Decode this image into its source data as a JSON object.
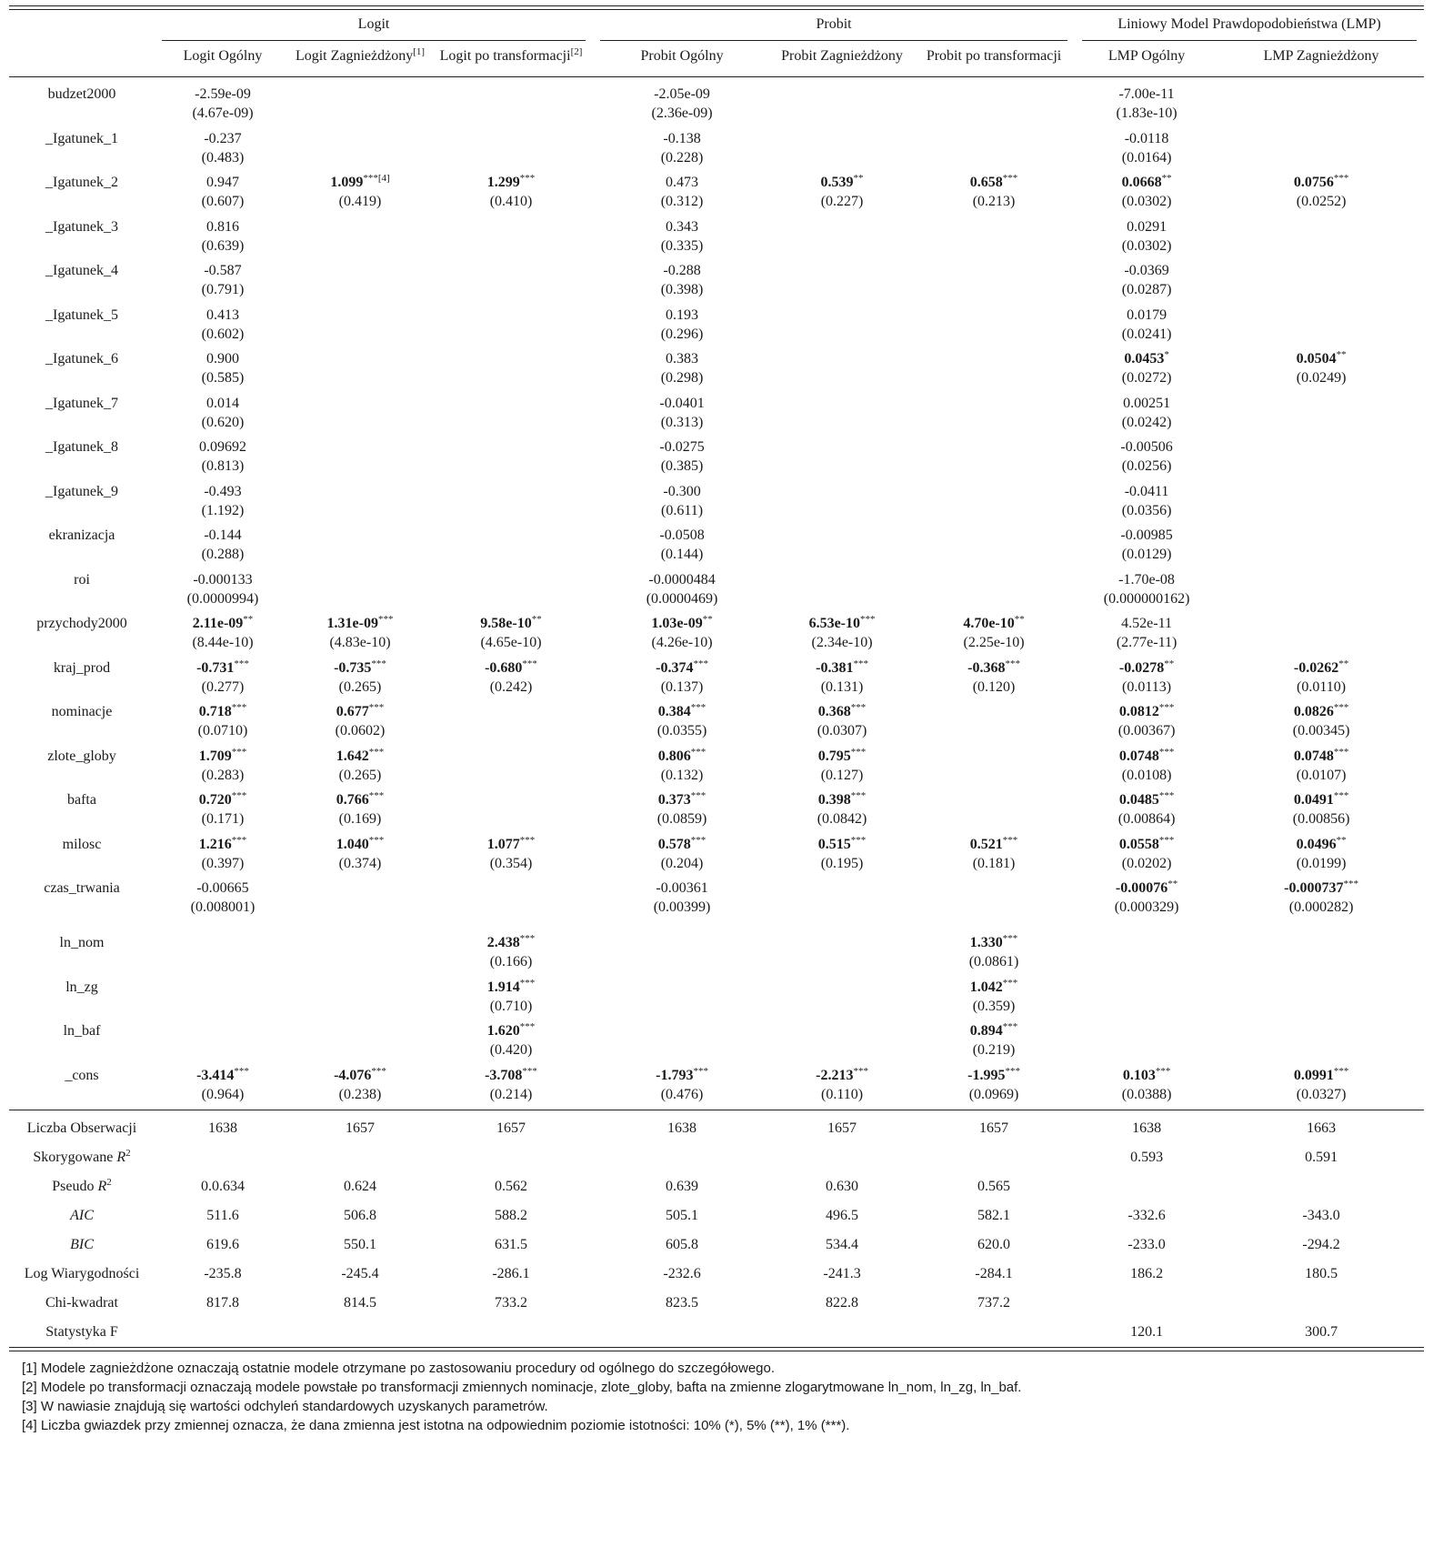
{
  "groups": [
    {
      "label": "Logit",
      "cols": 3
    },
    {
      "label": "Probit",
      "cols": 3
    },
    {
      "label": "Liniowy Model Prawdopodobieństwa (LMP)",
      "cols": 2
    }
  ],
  "columns": [
    {
      "label": "Logit Ogólny",
      "sup": ""
    },
    {
      "label": "Logit Zagnieżdżony",
      "sup": "[1]"
    },
    {
      "label": "Logit po transformacji",
      "sup": "[2]"
    },
    {
      "label": "Probit Ogólny",
      "sup": ""
    },
    {
      "label": "Probit Zagnieżdżony",
      "sup": ""
    },
    {
      "label": "Probit po transformacji",
      "sup": ""
    },
    {
      "label": "LMP Ogólny",
      "sup": ""
    },
    {
      "label": "LMP Zagnieżdżony",
      "sup": ""
    }
  ],
  "rows": [
    {
      "var": "budzet2000",
      "cells": [
        {
          "c": "-2.59e-09",
          "s": "(4.67e-09)",
          "st": ""
        },
        null,
        null,
        {
          "c": "-2.05e-09",
          "s": "(2.36e-09)",
          "st": ""
        },
        null,
        null,
        {
          "c": "-7.00e-11",
          "s": "(1.83e-10)",
          "st": ""
        },
        null
      ]
    },
    {
      "var": "_Igatunek_1",
      "cells": [
        {
          "c": "-0.237",
          "s": "(0.483)",
          "st": ""
        },
        null,
        null,
        {
          "c": "-0.138",
          "s": "(0.228)",
          "st": ""
        },
        null,
        null,
        {
          "c": "-0.0118",
          "s": "(0.0164)",
          "st": ""
        },
        null
      ]
    },
    {
      "var": "_Igatunek_2",
      "cells": [
        {
          "c": "0.947",
          "s": "(0.607)",
          "st": ""
        },
        {
          "c": "1.099",
          "s": "(0.419)",
          "st": "***",
          "b": true,
          "sup": "[4]"
        },
        {
          "c": "1.299",
          "s": "(0.410)",
          "st": "***",
          "b": true
        },
        {
          "c": "0.473",
          "s": "(0.312)",
          "st": ""
        },
        {
          "c": "0.539",
          "s": "(0.227)",
          "st": "**",
          "b": true
        },
        {
          "c": "0.658",
          "s": "(0.213)",
          "st": "***",
          "b": true
        },
        {
          "c": "0.0668",
          "s": "(0.0302)",
          "st": "**",
          "b": true
        },
        {
          "c": "0.0756",
          "s": "(0.0252)",
          "st": "***",
          "b": true
        }
      ]
    },
    {
      "var": "_Igatunek_3",
      "cells": [
        {
          "c": "0.816",
          "s": "(0.639)",
          "st": ""
        },
        null,
        null,
        {
          "c": "0.343",
          "s": "(0.335)",
          "st": ""
        },
        null,
        null,
        {
          "c": "0.0291",
          "s": "(0.0302)",
          "st": ""
        },
        null
      ]
    },
    {
      "var": "_Igatunek_4",
      "cells": [
        {
          "c": "-0.587",
          "s": "(0.791)",
          "st": ""
        },
        null,
        null,
        {
          "c": "-0.288",
          "s": "(0.398)",
          "st": ""
        },
        null,
        null,
        {
          "c": "-0.0369",
          "s": "(0.0287)",
          "st": ""
        },
        null
      ]
    },
    {
      "var": "_Igatunek_5",
      "cells": [
        {
          "c": "0.413",
          "s": "(0.602)",
          "st": ""
        },
        null,
        null,
        {
          "c": "0.193",
          "s": "(0.296)",
          "st": ""
        },
        null,
        null,
        {
          "c": "0.0179",
          "s": "(0.0241)",
          "st": ""
        },
        null
      ]
    },
    {
      "var": "_Igatunek_6",
      "cells": [
        {
          "c": "0.900",
          "s": "(0.585)",
          "st": ""
        },
        null,
        null,
        {
          "c": "0.383",
          "s": "(0.298)",
          "st": ""
        },
        null,
        null,
        {
          "c": "0.0453",
          "s": "(0.0272)",
          "st": "*",
          "b": true
        },
        {
          "c": "0.0504",
          "s": "(0.0249)",
          "st": "**",
          "b": true
        }
      ]
    },
    {
      "var": "_Igatunek_7",
      "cells": [
        {
          "c": "0.014",
          "s": "(0.620)",
          "st": ""
        },
        null,
        null,
        {
          "c": "-0.0401",
          "s": "(0.313)",
          "st": ""
        },
        null,
        null,
        {
          "c": "0.00251",
          "s": "(0.0242)",
          "st": ""
        },
        null
      ]
    },
    {
      "var": "_Igatunek_8",
      "cells": [
        {
          "c": "0.09692",
          "s": "(0.813)",
          "st": ""
        },
        null,
        null,
        {
          "c": "-0.0275",
          "s": "(0.385)",
          "st": ""
        },
        null,
        null,
        {
          "c": "-0.00506",
          "s": "(0.0256)",
          "st": ""
        },
        null
      ]
    },
    {
      "var": "_Igatunek_9",
      "cells": [
        {
          "c": "-0.493",
          "s": "(1.192)",
          "st": ""
        },
        null,
        null,
        {
          "c": "-0.300",
          "s": "(0.611)",
          "st": ""
        },
        null,
        null,
        {
          "c": "-0.0411",
          "s": "(0.0356)",
          "st": ""
        },
        null
      ]
    },
    {
      "var": "ekranizacja",
      "cells": [
        {
          "c": "-0.144",
          "s": "(0.288)",
          "st": ""
        },
        null,
        null,
        {
          "c": "-0.0508",
          "s": "(0.144)",
          "st": ""
        },
        null,
        null,
        {
          "c": "-0.00985",
          "s": "(0.0129)",
          "st": ""
        },
        null
      ]
    },
    {
      "var": "roi",
      "cells": [
        {
          "c": "-0.000133",
          "s": "(0.0000994)",
          "st": ""
        },
        null,
        null,
        {
          "c": "-0.0000484",
          "s": "(0.0000469)",
          "st": ""
        },
        null,
        null,
        {
          "c": "-1.70e-08",
          "s": "(0.000000162)",
          "st": ""
        },
        null
      ]
    },
    {
      "var": "przychody2000",
      "cells": [
        {
          "c": "2.11e-09",
          "s": "(8.44e-10)",
          "st": "**",
          "b": true
        },
        {
          "c": "1.31e-09",
          "s": "(4.83e-10)",
          "st": "***",
          "b": true
        },
        {
          "c": "9.58e-10",
          "s": "(4.65e-10)",
          "st": "**",
          "b": true
        },
        {
          "c": "1.03e-09",
          "s": "(4.26e-10)",
          "st": "**",
          "b": true
        },
        {
          "c": "6.53e-10",
          "s": "(2.34e-10)",
          "st": "***",
          "b": true
        },
        {
          "c": "4.70e-10",
          "s": "(2.25e-10)",
          "st": "**",
          "b": true
        },
        {
          "c": "4.52e-11",
          "s": "(2.77e-11)",
          "st": ""
        },
        null
      ]
    },
    {
      "var": "kraj_prod",
      "cells": [
        {
          "c": "-0.731",
          "s": "(0.277)",
          "st": "***",
          "b": true
        },
        {
          "c": "-0.735",
          "s": "(0.265)",
          "st": "***",
          "b": true
        },
        {
          "c": "-0.680",
          "s": "(0.242)",
          "st": "***",
          "b": true
        },
        {
          "c": "-0.374",
          "s": "(0.137)",
          "st": "***",
          "b": true
        },
        {
          "c": "-0.381",
          "s": "(0.131)",
          "st": "***",
          "b": true
        },
        {
          "c": "-0.368",
          "s": "(0.120)",
          "st": "***",
          "b": true
        },
        {
          "c": "-0.0278",
          "s": "(0.0113)",
          "st": "**",
          "b": true
        },
        {
          "c": "-0.0262",
          "s": "(0.0110)",
          "st": "**",
          "b": true
        }
      ]
    },
    {
      "var": "nominacje",
      "cells": [
        {
          "c": "0.718",
          "s": "(0.0710)",
          "st": "***",
          "b": true
        },
        {
          "c": "0.677",
          "s": "(0.0602)",
          "st": "***",
          "b": true
        },
        null,
        {
          "c": "0.384",
          "s": "(0.0355)",
          "st": "***",
          "b": true
        },
        {
          "c": "0.368",
          "s": "(0.0307)",
          "st": "***",
          "b": true
        },
        null,
        {
          "c": "0.0812",
          "s": "(0.00367)",
          "st": "***",
          "b": true
        },
        {
          "c": "0.0826",
          "s": "(0.00345)",
          "st": "***",
          "b": true
        }
      ]
    },
    {
      "var": "zlote_globy",
      "cells": [
        {
          "c": "1.709",
          "s": "(0.283)",
          "st": "***",
          "b": true
        },
        {
          "c": "1.642",
          "s": "(0.265)",
          "st": "***",
          "b": true
        },
        null,
        {
          "c": "0.806",
          "s": "(0.132)",
          "st": "***",
          "b": true
        },
        {
          "c": "0.795",
          "s": "(0.127)",
          "st": "***",
          "b": true
        },
        null,
        {
          "c": "0.0748",
          "s": "(0.0108)",
          "st": "***",
          "b": true
        },
        {
          "c": "0.0748",
          "s": "(0.0107)",
          "st": "***",
          "b": true
        }
      ]
    },
    {
      "var": "bafta",
      "cells": [
        {
          "c": "0.720",
          "s": "(0.171)",
          "st": "***",
          "b": true
        },
        {
          "c": "0.766",
          "s": "(0.169)",
          "st": "***",
          "b": true
        },
        null,
        {
          "c": "0.373",
          "s": "(0.0859)",
          "st": "***",
          "b": true
        },
        {
          "c": "0.398",
          "s": "(0.0842)",
          "st": "***",
          "b": true
        },
        null,
        {
          "c": "0.0485",
          "s": "(0.00864)",
          "st": "***",
          "b": true
        },
        {
          "c": "0.0491",
          "s": "(0.00856)",
          "st": "***",
          "b": true
        }
      ]
    },
    {
      "var": "milosc",
      "cells": [
        {
          "c": "1.216",
          "s": "(0.397)",
          "st": "***",
          "b": true
        },
        {
          "c": "1.040",
          "s": "(0.374)",
          "st": "***",
          "b": true
        },
        {
          "c": "1.077",
          "s": "(0.354)",
          "st": "***",
          "b": true
        },
        {
          "c": "0.578",
          "s": "(0.204)",
          "st": "***",
          "b": true
        },
        {
          "c": "0.515",
          "s": "(0.195)",
          "st": "***",
          "b": true
        },
        {
          "c": "0.521",
          "s": "(0.181)",
          "st": "***",
          "b": true
        },
        {
          "c": "0.0558",
          "s": "(0.0202)",
          "st": "***",
          "b": true
        },
        {
          "c": "0.0496",
          "s": "(0.0199)",
          "st": "**",
          "b": true
        }
      ]
    },
    {
      "var": "czas_trwania",
      "cells": [
        {
          "c": "-0.00665",
          "s": "(0.008001)",
          "st": ""
        },
        null,
        null,
        {
          "c": "-0.00361",
          "s": "(0.00399)",
          "st": ""
        },
        null,
        null,
        {
          "c": "-0.00076",
          "s": "(0.000329)",
          "st": "**",
          "b": true
        },
        {
          "c": "-0.000737",
          "s": "(0.000282)",
          "st": "***",
          "b": true
        }
      ]
    },
    {
      "var": "ln_nom",
      "cells": [
        null,
        null,
        {
          "c": "2.438",
          "s": "(0.166)",
          "st": "***",
          "b": true
        },
        null,
        null,
        {
          "c": "1.330",
          "s": "(0.0861)",
          "st": "***",
          "b": true
        },
        null,
        null
      ]
    },
    {
      "var": "ln_zg",
      "cells": [
        null,
        null,
        {
          "c": "1.914",
          "s": "(0.710)",
          "st": "***",
          "b": true
        },
        null,
        null,
        {
          "c": "1.042",
          "s": "(0.359)",
          "st": "***",
          "b": true
        },
        null,
        null
      ]
    },
    {
      "var": "ln_baf",
      "cells": [
        null,
        null,
        {
          "c": "1.620",
          "s": "(0.420)",
          "st": "***",
          "b": true
        },
        null,
        null,
        {
          "c": "0.894",
          "s": "(0.219)",
          "st": "***",
          "b": true
        },
        null,
        null
      ]
    },
    {
      "var": "_cons",
      "cells": [
        {
          "c": "-3.414",
          "s": "(0.964)",
          "st": "***",
          "b": true
        },
        {
          "c": "-4.076",
          "s": "(0.238)",
          "st": "***",
          "b": true
        },
        {
          "c": "-3.708",
          "s": "(0.214)",
          "st": "***",
          "b": true
        },
        {
          "c": "-1.793",
          "s": "(0.476)",
          "st": "***",
          "b": true
        },
        {
          "c": "-2.213",
          "s": "(0.110)",
          "st": "***",
          "b": true
        },
        {
          "c": "-1.995",
          "s": "(0.0969)",
          "st": "***",
          "b": true
        },
        {
          "c": "0.103",
          "s": "(0.0388)",
          "st": "***",
          "b": true
        },
        {
          "c": "0.0991",
          "s": "(0.0327)",
          "st": "***",
          "b": true
        }
      ]
    }
  ],
  "stats": [
    {
      "label": "Liczba Obserwacji",
      "values": [
        "1638",
        "1657",
        "1657",
        "1638",
        "1657",
        "1657",
        "1638",
        "1663"
      ]
    },
    {
      "label": "Skorygowane ",
      "math": "R",
      "sup": "2",
      "values": [
        "",
        "",
        "",
        "",
        "",
        "",
        "0.593",
        "0.591"
      ]
    },
    {
      "label": "Pseudo ",
      "math": "R",
      "sup": "2",
      "values": [
        "0.0.634",
        "0.624",
        "0.562",
        "0.639",
        "0.630",
        "0.565",
        "",
        ""
      ]
    },
    {
      "label": "AIC",
      "italic": true,
      "values": [
        "511.6",
        "506.8",
        "588.2",
        "505.1",
        "496.5",
        "582.1",
        "-332.6",
        "-343.0"
      ]
    },
    {
      "label": "BIC",
      "italic": true,
      "values": [
        "619.6",
        "550.1",
        "631.5",
        "605.8",
        "534.4",
        "620.0",
        "-233.0",
        "-294.2"
      ]
    },
    {
      "label": "Log Wiarygodności",
      "values": [
        "-235.8",
        "-245.4",
        "-286.1",
        "-232.6",
        "-241.3",
        "-284.1",
        "186.2",
        "180.5"
      ]
    },
    {
      "label": "Chi-kwadrat",
      "values": [
        "817.8",
        "814.5",
        "733.2",
        "823.5",
        "822.8",
        "737.2",
        "",
        ""
      ]
    },
    {
      "label": "Statystyka F",
      "values": [
        "",
        "",
        "",
        "",
        "",
        "",
        "120.1",
        "300.7"
      ]
    }
  ],
  "notes": [
    "[1] Modele zagnieżdżone oznaczają ostatnie modele otrzymane po zastosowaniu procedury od ogólnego do szczegółowego.",
    "[2] Modele po transformacji oznaczają modele powstałe po transformacji zmiennych nominacje, zlote_globy, bafta na zmienne zlogarytmowane ln_nom, ln_zg, ln_baf.",
    "[3] W nawiasie znajdują się wartości odchyleń standardowych uzyskanych parametrów.",
    "[4] Liczba gwiazdek przy zmiennej oznacza, że dana zmienna jest istotna na odpowiednim poziomie istotności: 10% (*), 5% (**), 1% (***)."
  ]
}
